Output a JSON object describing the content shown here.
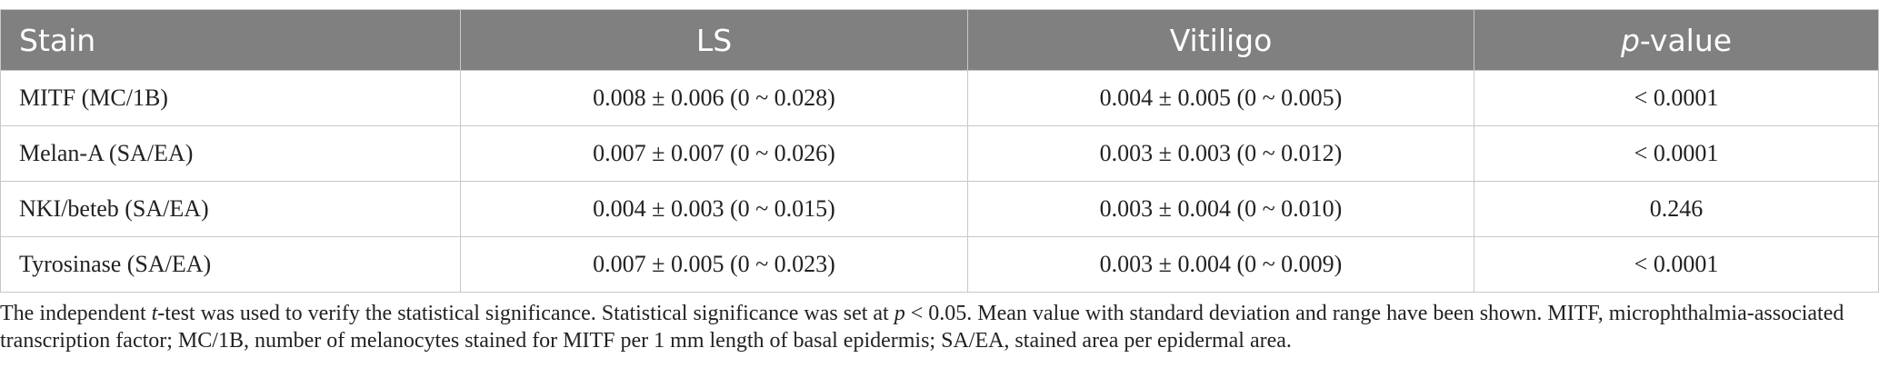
{
  "table": {
    "header": [
      "Stain",
      "LS",
      "Vitiligo",
      [
        "p",
        "-value"
      ]
    ],
    "rows": [
      [
        "MITF (MC/1B)",
        "0.008 ± 0.006 (0 ~ 0.028)",
        "0.004 ± 0.005 (0 ~ 0.005)",
        "< 0.0001"
      ],
      [
        "Melan-A (SA/EA)",
        "0.007 ± 0.007 (0 ~ 0.026)",
        "0.003 ± 0.003 (0 ~ 0.012)",
        "< 0.0001"
      ],
      [
        "NKI/beteb (SA/EA)",
        "0.004 ± 0.003 (0 ~ 0.015)",
        "0.003 ± 0.004 (0 ~ 0.010)",
        "0.246"
      ],
      [
        "Tyrosinase (SA/EA)",
        "0.007 ± 0.005 (0 ~ 0.023)",
        "0.003 ± 0.004 (0 ~ 0.009)",
        "< 0.0001"
      ]
    ]
  },
  "footnote": [
    "The independent ",
    "t",
    "-test was used to verify the statistical significance. Statistical significance was set at ",
    "p",
    " < 0.05. Mean value with standard deviation and range have been shown. MITF, microphthalmia-associated transcription factor; MC/1B, number of melanocytes stained for MITF per 1 mm length of basal epidermis; SA/EA, stained area per epidermal area."
  ]
}
